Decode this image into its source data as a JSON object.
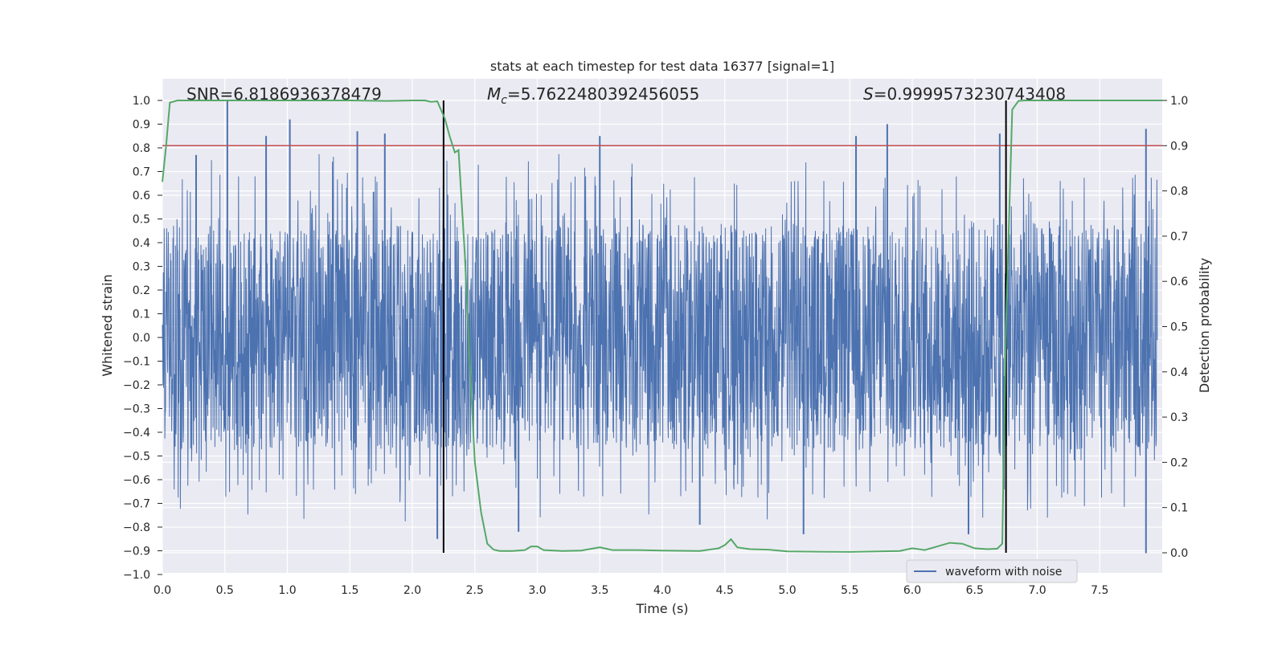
{
  "chart_data": {
    "type": "line",
    "title": "stats at each timestep for test data 16377 [signal=1]",
    "xlabel": "Time (s)",
    "ylabel": "Whitened strain",
    "y2label": "Detection probability",
    "xlim": [
      0.0,
      8.0
    ],
    "ylim": [
      -1.0,
      1.0
    ],
    "y2lim": [
      -0.045,
      1.045
    ],
    "xticks": [
      "0.0",
      "0.5",
      "1.0",
      "1.5",
      "2.0",
      "2.5",
      "3.0",
      "3.5",
      "4.0",
      "4.5",
      "5.0",
      "5.5",
      "6.0",
      "6.5",
      "7.0",
      "7.5"
    ],
    "yticks": [
      "1.0",
      "0.9",
      "0.8",
      "0.7",
      "0.6",
      "0.5",
      "0.4",
      "0.3",
      "0.2",
      "0.1",
      "0.0",
      "−0.1",
      "−0.2",
      "−0.3",
      "−0.4",
      "−0.5",
      "−0.6",
      "−0.7",
      "−0.8",
      "−0.9",
      "−1.0"
    ],
    "y2ticks": [
      "1.0",
      "0.9",
      "0.8",
      "0.7",
      "0.6",
      "0.5",
      "0.4",
      "0.3",
      "0.2",
      "0.1",
      "0.0"
    ],
    "annotations": {
      "snr": "SNR=6.8186936378479",
      "mc_symbol": "M",
      "mc_sub": "c",
      "mc_value": "=5.7622480392456055",
      "s_symbol": "S",
      "s_value": "=0.9999573230743408"
    },
    "threshold": {
      "value": 0.9,
      "axis": "right",
      "color": "#c44e52"
    },
    "vlines": [
      2.25,
      6.75
    ],
    "legend": {
      "label": "waveform with noise",
      "location": "lower-right"
    },
    "series": [
      {
        "name": "waveform with noise",
        "axis": "left",
        "color": "#4c72b0",
        "envelope": "random noise, amplitude ~±0.45, spikes to ~±0.9, 8 s",
        "peaks": [
          {
            "x": 0.52,
            "y": 1.0
          },
          {
            "x": 0.27,
            "y": 0.77
          },
          {
            "x": 0.83,
            "y": 0.85
          },
          {
            "x": 1.02,
            "y": 0.92
          },
          {
            "x": 1.56,
            "y": 0.87
          },
          {
            "x": 1.78,
            "y": 0.86
          },
          {
            "x": 3.5,
            "y": 0.85
          },
          {
            "x": 5.55,
            "y": 0.85
          },
          {
            "x": 5.8,
            "y": 0.9
          },
          {
            "x": 6.7,
            "y": 0.86
          },
          {
            "x": 7.87,
            "y": 0.88
          }
        ],
        "troughs": [
          {
            "x": 2.2,
            "y": -0.85
          },
          {
            "x": 5.13,
            "y": -0.83
          },
          {
            "x": 6.45,
            "y": -0.83
          },
          {
            "x": 7.87,
            "y": -0.91
          },
          {
            "x": 2.85,
            "y": -0.82
          },
          {
            "x": 4.3,
            "y": -0.79
          }
        ]
      },
      {
        "name": "detection probability",
        "axis": "right",
        "color": "#55a868",
        "x": [
          0.0,
          0.03,
          0.06,
          0.12,
          0.3,
          0.6,
          1.0,
          1.5,
          1.8,
          2.0,
          2.1,
          2.15,
          2.2,
          2.26,
          2.3,
          2.34,
          2.37,
          2.42,
          2.46,
          2.5,
          2.55,
          2.6,
          2.65,
          2.7,
          2.8,
          2.9,
          2.95,
          3.0,
          3.05,
          3.2,
          3.35,
          3.5,
          3.6,
          3.8,
          4.0,
          4.3,
          4.45,
          4.5,
          4.55,
          4.6,
          4.7,
          4.85,
          5.0,
          5.5,
          5.9,
          6.0,
          6.1,
          6.3,
          6.4,
          6.5,
          6.6,
          6.68,
          6.72,
          6.75,
          6.8,
          6.85,
          6.9,
          7.0,
          7.3,
          7.6,
          8.0
        ],
        "y": [
          0.82,
          0.9,
          0.995,
          1.0,
          1.0,
          1.0,
          1.0,
          1.0,
          0.999,
          1.0,
          1.0,
          0.997,
          0.998,
          0.96,
          0.92,
          0.885,
          0.89,
          0.66,
          0.42,
          0.2,
          0.09,
          0.02,
          0.007,
          0.004,
          0.004,
          0.006,
          0.014,
          0.014,
          0.006,
          0.004,
          0.005,
          0.012,
          0.006,
          0.006,
          0.005,
          0.004,
          0.01,
          0.017,
          0.03,
          0.012,
          0.008,
          0.007,
          0.003,
          0.002,
          0.004,
          0.01,
          0.006,
          0.022,
          0.02,
          0.01,
          0.008,
          0.009,
          0.02,
          0.5,
          0.98,
          0.999,
          1.0,
          1.0,
          1.0,
          1.0,
          1.0
        ]
      }
    ]
  }
}
